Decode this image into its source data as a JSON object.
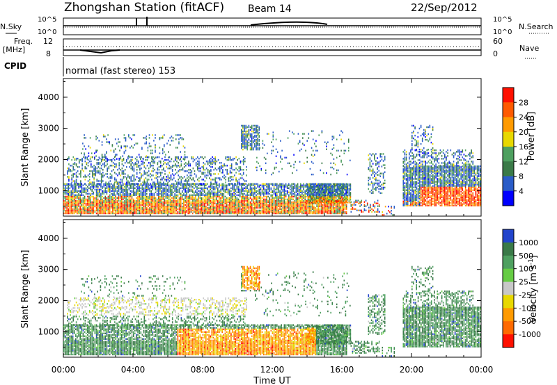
{
  "header": {
    "station": "Zhongshan Station (fitACF)",
    "beam": "Beam 14",
    "date": "22/Sep/2012"
  },
  "top_panels": {
    "nsky_label": "N.Sky",
    "nsky_ticks": [
      "10^5",
      "10^0"
    ],
    "nsearch_label": "N.Search",
    "nsearch_ticks": [
      "10^5",
      "10^0"
    ],
    "freq_label_1": "Freq.",
    "freq_label_2": "[MHz]",
    "freq_ticks": [
      "12",
      "8"
    ],
    "nave_label": "Nave",
    "nave_ticks": [
      "60",
      "0"
    ],
    "cpid_label": "CPID",
    "cpid_text": "normal (fast stereo) 153"
  },
  "chart_data": [
    {
      "type": "heatmap",
      "name": "power",
      "ylabel": "Slant Range [km]",
      "xlabel": "Time UT",
      "x_ticks": [
        "00:00",
        "04:00",
        "08:00",
        "12:00",
        "16:00",
        "20:00",
        "00:00"
      ],
      "y_ticks": [
        "1000",
        "2000",
        "3000",
        "4000"
      ],
      "xlim_hours": [
        0,
        24
      ],
      "ylim_km": [
        180,
        4600
      ],
      "colorbar": {
        "label": "Power [dB]",
        "ticks": [
          "4",
          "8",
          "12",
          "16",
          "20",
          "24",
          "28"
        ],
        "colors": [
          "#0000ff",
          "#2a5cc8",
          "#3a7a48",
          "#4ea060",
          "#e8d800",
          "#ff9a00",
          "#ff5a00",
          "#ff1000"
        ]
      }
    },
    {
      "type": "heatmap",
      "name": "velocity",
      "ylabel": "Slant Range [km]",
      "xlabel": "Time UT",
      "x_ticks": [
        "00:00",
        "04:00",
        "08:00",
        "12:00",
        "16:00",
        "20:00",
        "00:00"
      ],
      "y_ticks": [
        "1000",
        "2000",
        "3000",
        "4000"
      ],
      "xlim_hours": [
        0,
        24
      ],
      "ylim_km": [
        180,
        4600
      ],
      "colorbar": {
        "label": "Velocity [m s",
        "label_sup": "-1",
        "label_end": "]",
        "ticks": [
          "1000",
          "500",
          "100",
          "25",
          "-25",
          "-100",
          "-500",
          "-1000"
        ],
        "colors": [
          "#2244cc",
          "#3a7a48",
          "#4ea060",
          "#66cc44",
          "#c8c8c8",
          "#e8d800",
          "#ff9a00",
          "#ff6a00",
          "#ff1000"
        ]
      }
    }
  ],
  "xaxis": {
    "label": "Time UT"
  }
}
